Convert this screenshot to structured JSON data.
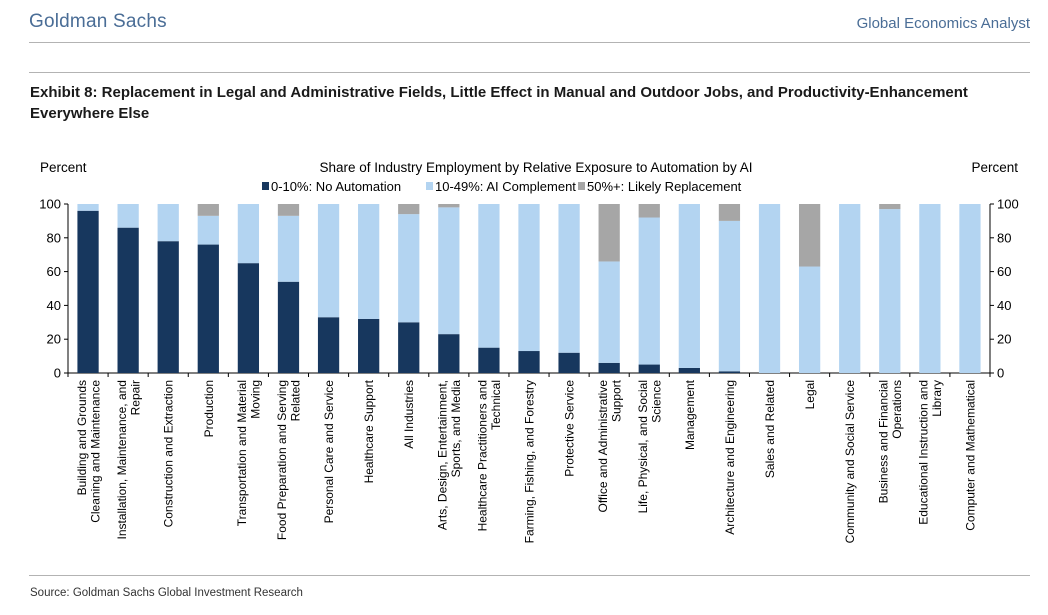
{
  "header": {
    "brand": "Goldman Sachs",
    "publication": "Global Economics Analyst"
  },
  "exhibit": {
    "title": "Exhibit 8: Replacement in Legal and Administrative Fields, Little Effect in Manual and Outdoor Jobs, and Productivity-Enhancement Everywhere Else"
  },
  "footer": {
    "source": "Source: Goldman Sachs Global Investment Research"
  },
  "colors": {
    "no_automation": "#17375e",
    "complement": "#b3d4f1",
    "replacement": "#a6a6a6",
    "brand": "#4a6d96"
  },
  "chart_data": {
    "type": "bar",
    "stacked": true,
    "title": "Share of Industry Employment by Relative Exposure to Automation by AI",
    "ylabel_left": "Percent",
    "ylabel_right": "Percent",
    "ylim": [
      0,
      100
    ],
    "yticks": [
      0,
      20,
      40,
      60,
      80,
      100
    ],
    "legend_position": "top-center",
    "categories": [
      "Building and Grounds Cleaning and Maintenance",
      "Installation, Maintenance, and Repair",
      "Construction and Extraction",
      "Production",
      "Transportation and Material Moving",
      "Food Preparation and Serving Related",
      "Personal Care and Service",
      "Healthcare Support",
      "All Industries",
      "Arts, Design, Entertainment, Sports, and Media",
      "Healthcare Practitioners and Technical",
      "Farming, Fishing, and Forestry",
      "Protective Service",
      "Office and Administrative Support",
      "Life, Physical, and Social Science",
      "Management",
      "Architecture and Engineering",
      "Sales and Related",
      "Legal",
      "Community and Social Service",
      "Business and Financial Operations",
      "Educational Instruction and Library",
      "Computer and Mathematical"
    ],
    "category_lines": [
      [
        "Building and Grounds",
        "Cleaning and Maintenance"
      ],
      [
        "Installation, Maintenance, and",
        "Repair"
      ],
      [
        "Construction and Extraction"
      ],
      [
        "Production"
      ],
      [
        "Transportation and Material",
        "Moving"
      ],
      [
        "Food Preparation and Serving",
        "Related"
      ],
      [
        "Personal Care and Service"
      ],
      [
        "Healthcare Support"
      ],
      [
        "All Industries"
      ],
      [
        "Arts, Design, Entertainment,",
        "Sports, and Media"
      ],
      [
        "Healthcare Practitioners and",
        "Technical"
      ],
      [
        "Farming, Fishing, and Forestry"
      ],
      [
        "Protective Service"
      ],
      [
        "Office and Administrative",
        "Support"
      ],
      [
        "Life, Physical, and Social",
        "Science"
      ],
      [
        "Management"
      ],
      [
        "Architecture and Engineering"
      ],
      [
        "Sales and Related"
      ],
      [
        "Legal"
      ],
      [
        "Community and Social Service"
      ],
      [
        "Business and Financial",
        "Operations"
      ],
      [
        "Educational Instruction and",
        "Library"
      ],
      [
        "Computer and Mathematical"
      ]
    ],
    "series": [
      {
        "name": "0-10%: No Automation",
        "color_key": "no_automation",
        "values": [
          96,
          86,
          78,
          76,
          65,
          54,
          33,
          32,
          30,
          23,
          15,
          13,
          12,
          6,
          5,
          3,
          1,
          0,
          0,
          0,
          0,
          0,
          0
        ]
      },
      {
        "name": "10-49%: AI Complement",
        "color_key": "complement",
        "values": [
          4,
          14,
          22,
          17,
          35,
          39,
          67,
          68,
          64,
          75,
          85,
          87,
          88,
          60,
          87,
          97,
          89,
          100,
          63,
          100,
          97,
          100,
          100
        ]
      },
      {
        "name": "50%+: Likely Replacement",
        "color_key": "replacement",
        "values": [
          0,
          0,
          0,
          7,
          0,
          7,
          0,
          0,
          6,
          2,
          0,
          0,
          0,
          34,
          8,
          0,
          10,
          0,
          37,
          0,
          3,
          0,
          0
        ]
      }
    ]
  }
}
